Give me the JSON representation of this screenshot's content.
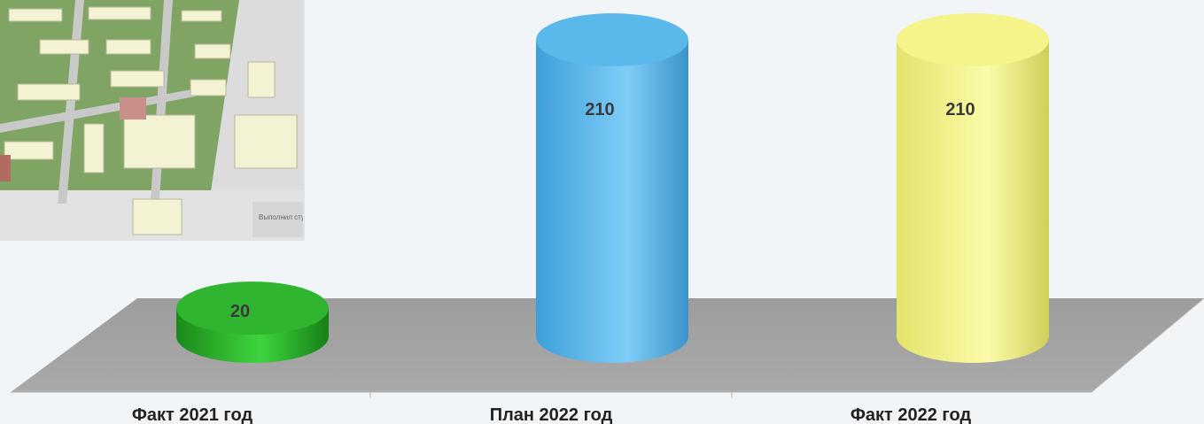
{
  "chart_data": {
    "type": "bar",
    "style": "3d-cylinder",
    "categories": [
      "Факт 2021 год",
      "План 2022 год",
      "Факт 2022 год"
    ],
    "series": [
      {
        "values": [
          20,
          210,
          210
        ]
      }
    ],
    "data_labels": [
      "20",
      "210",
      "210"
    ],
    "colors": [
      "#2fb52f",
      "#5bb8ea",
      "#f4f48a"
    ],
    "grid": false,
    "legend": "none"
  },
  "photo": {
    "caption": "Выполнил сту..."
  }
}
